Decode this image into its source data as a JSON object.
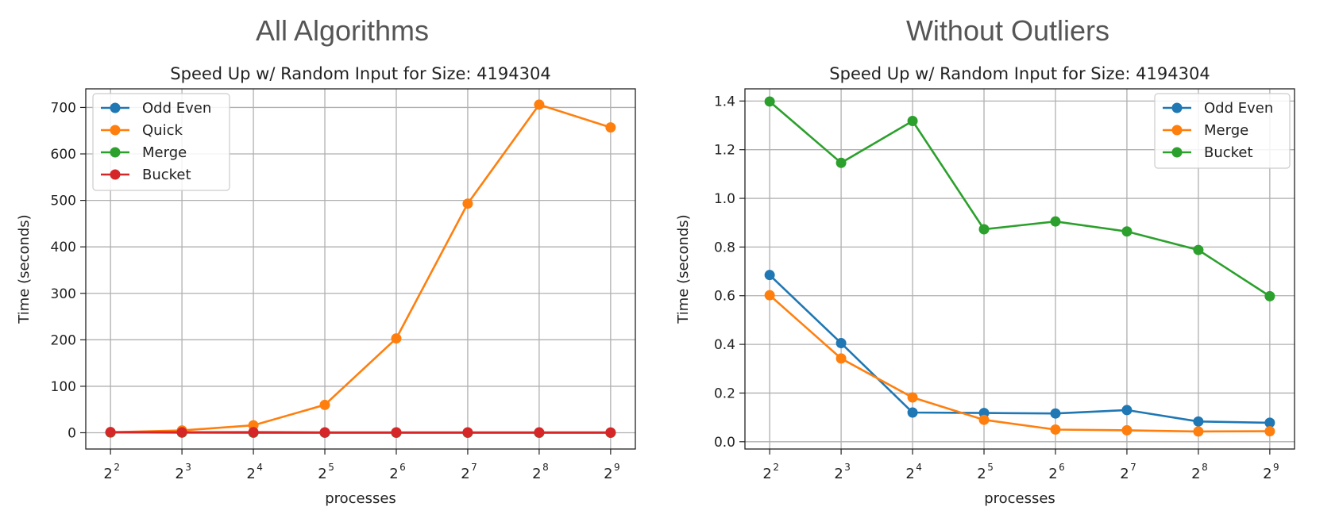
{
  "headings": {
    "left": "All Algorithms",
    "right": "Without Outliers"
  },
  "chart_data": [
    {
      "type": "line",
      "title": "Speed Up w/ Random Input for Size: 4194304",
      "xlabel": "processes",
      "ylabel": "Time (seconds)",
      "x_base": "2",
      "x_exponents": [
        "2",
        "3",
        "4",
        "5",
        "6",
        "7",
        "8",
        "9"
      ],
      "ylim": [
        -35,
        740
      ],
      "yticks": [
        0,
        100,
        200,
        300,
        400,
        500,
        600,
        700
      ],
      "grid": true,
      "legend_placement": "upper-left",
      "series": [
        {
          "name": "Odd Even",
          "color": "#1f77b4",
          "values": [
            0.69,
            0.41,
            0.12,
            0.12,
            0.12,
            0.13,
            0.08,
            0.08
          ]
        },
        {
          "name": "Quick",
          "color": "#ff7f0e",
          "values": [
            1,
            5,
            16,
            60,
            203,
            493,
            706,
            657
          ]
        },
        {
          "name": "Merge",
          "color": "#2ca02c",
          "values": [
            0.6,
            0.34,
            0.18,
            0.09,
            0.05,
            0.05,
            0.04,
            0.04
          ]
        },
        {
          "name": "Bucket",
          "color": "#d62728",
          "values": [
            1.4,
            1.15,
            1.32,
            0.87,
            0.9,
            0.86,
            0.79,
            0.6
          ]
        }
      ]
    },
    {
      "type": "line",
      "title": "Speed Up w/ Random Input for Size: 4194304",
      "xlabel": "processes",
      "ylabel": "Time (seconds)",
      "x_base": "2",
      "x_exponents": [
        "2",
        "3",
        "4",
        "5",
        "6",
        "7",
        "8",
        "9"
      ],
      "ylim": [
        -0.03,
        1.45
      ],
      "yticks": [
        "0.0",
        "0.2",
        "0.4",
        "0.6",
        "0.8",
        "1.0",
        "1.2",
        "1.4"
      ],
      "grid": true,
      "legend_placement": "upper-right",
      "series": [
        {
          "name": "Odd Even",
          "color": "#1f77b4",
          "values": [
            0.685,
            0.405,
            0.12,
            0.118,
            0.116,
            0.13,
            0.083,
            0.078
          ]
        },
        {
          "name": "Merge",
          "color": "#ff7f0e",
          "values": [
            0.602,
            0.342,
            0.182,
            0.09,
            0.05,
            0.047,
            0.042,
            0.043
          ]
        },
        {
          "name": "Bucket",
          "color": "#2ca02c",
          "values": [
            1.398,
            1.146,
            1.318,
            0.873,
            0.905,
            0.864,
            0.788,
            0.598
          ]
        }
      ]
    }
  ]
}
